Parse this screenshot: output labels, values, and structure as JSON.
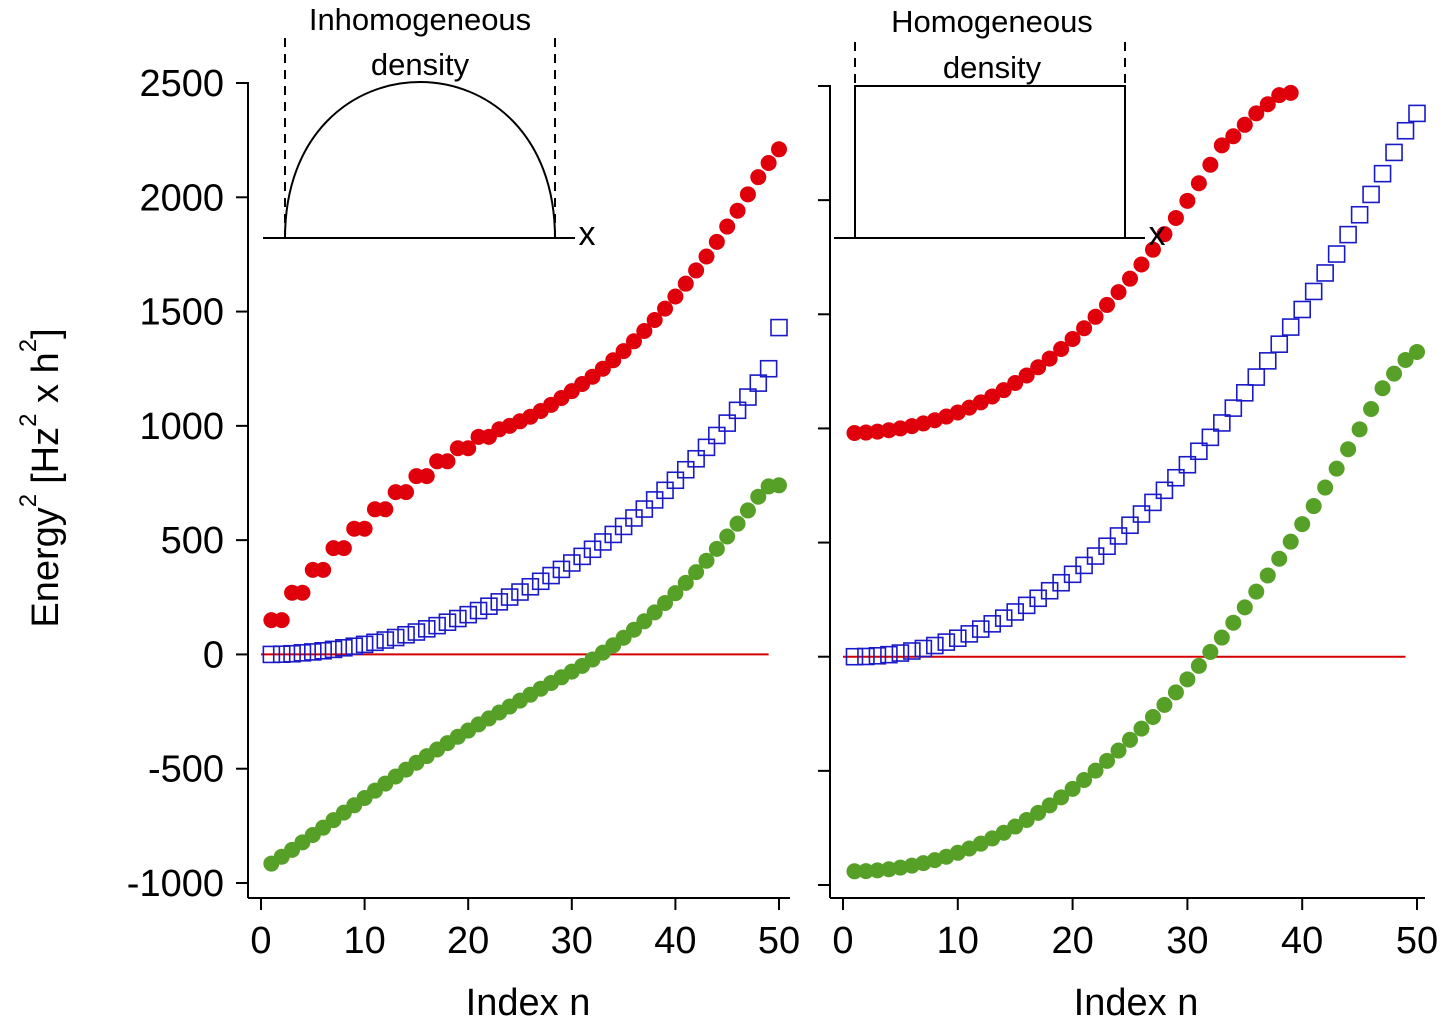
{
  "chart_data": [
    {
      "type": "scatter",
      "panel": "left",
      "xlabel": "Index n",
      "ylabel": "Energy",
      "ylabel_sup": "2",
      "ylabel_unit_parts": [
        "[Hz",
        "2",
        " x h",
        "2",
        "]"
      ],
      "xlim": [
        -1,
        50.5
      ],
      "ylim": [
        -1050,
        2550
      ],
      "xticks": [
        0,
        10,
        20,
        30,
        40,
        50
      ],
      "xtick_labels": [
        "0",
        "10",
        "20",
        "30",
        "40",
        "50"
      ],
      "yticks": [
        -1000,
        -500,
        0,
        500,
        1000,
        1500,
        2000,
        2500
      ],
      "ytick_labels": [
        "-1000",
        "-500",
        "0",
        "500",
        "1000",
        "1500",
        "2000",
        "2500"
      ],
      "zero_line": {
        "x": [
          0,
          49
        ],
        "y": 0,
        "color": "#d40000"
      },
      "inset": {
        "title_line1": "Inhomogeneous",
        "title_line2": "density",
        "axis_label": "x",
        "profile": "semicircle"
      },
      "series": [
        {
          "name": "upper",
          "marker": "filled-circle",
          "color": "#e0000b",
          "x": [
            1,
            2,
            3,
            4,
            5,
            6,
            7,
            8,
            9,
            10,
            11,
            12,
            13,
            14,
            15,
            16,
            17,
            18,
            19,
            20,
            21,
            22,
            23,
            24,
            25,
            26,
            27,
            28,
            29,
            30,
            31,
            32,
            33,
            34,
            35,
            36,
            37,
            38,
            39,
            40,
            41,
            42,
            43,
            44,
            45,
            46,
            47,
            48,
            49,
            50
          ],
          "y": [
            150,
            150,
            270,
            270,
            370,
            370,
            465,
            465,
            550,
            550,
            635,
            635,
            710,
            710,
            780,
            780,
            845,
            845,
            902,
            902,
            952,
            952,
            985,
            1000,
            1020,
            1040,
            1065,
            1092,
            1122,
            1152,
            1183,
            1215,
            1250,
            1287,
            1327,
            1370,
            1415,
            1463,
            1513,
            1566,
            1622,
            1680,
            1741,
            1805,
            1872,
            1941,
            2013,
            2088,
            2150,
            2210
          ]
        },
        {
          "name": "middle",
          "marker": "open-square",
          "color": "#1a1ac8",
          "x": [
            1,
            2,
            3,
            4,
            5,
            6,
            7,
            8,
            9,
            10,
            11,
            12,
            13,
            14,
            15,
            16,
            17,
            18,
            19,
            20,
            21,
            22,
            23,
            24,
            25,
            26,
            27,
            28,
            29,
            30,
            31,
            32,
            33,
            34,
            35,
            36,
            37,
            38,
            39,
            40,
            41,
            42,
            43,
            44,
            45,
            46,
            47,
            48,
            49,
            50
          ],
          "y": [
            0,
            1,
            3,
            7,
            11,
            16,
            22,
            29,
            36,
            44,
            53,
            63,
            74,
            86,
            98,
            112,
            126,
            141,
            157,
            174,
            192,
            211,
            230,
            251,
            273,
            296,
            320,
            345,
            372,
            400,
            429,
            460,
            492,
            525,
            560,
            597,
            636,
            676,
            718,
            762,
            808,
            856,
            906,
            958,
            1012,
            1068,
            1126,
            1187,
            1250,
            1430
          ]
        },
        {
          "name": "lower",
          "marker": "filled-circle",
          "color": "#56a028",
          "x": [
            1,
            2,
            3,
            4,
            5,
            6,
            7,
            8,
            9,
            10,
            11,
            12,
            13,
            14,
            15,
            16,
            17,
            18,
            19,
            20,
            21,
            22,
            23,
            24,
            25,
            26,
            27,
            28,
            29,
            30,
            31,
            32,
            33,
            34,
            35,
            36,
            37,
            38,
            39,
            40,
            41,
            42,
            43,
            44,
            45,
            46,
            47,
            48,
            49,
            50
          ],
          "y": [
            -915,
            -885,
            -855,
            -822,
            -790,
            -758,
            -725,
            -692,
            -660,
            -628,
            -596,
            -565,
            -534,
            -504,
            -474,
            -445,
            -416,
            -388,
            -360,
            -333,
            -306,
            -280,
            -254,
            -228,
            -202,
            -176,
            -150,
            -125,
            -100,
            -75,
            -50,
            -22,
            8,
            40,
            73,
            108,
            145,
            184,
            225,
            268,
            313,
            360,
            410,
            462,
            516,
            572,
            630,
            690,
            735,
            740
          ]
        }
      ]
    },
    {
      "type": "scatter",
      "panel": "right",
      "xlabel": "Index n",
      "xlim": [
        -1,
        50.5
      ],
      "ylim": [
        -1050,
        2550
      ],
      "xticks": [
        0,
        10,
        20,
        30,
        40,
        50
      ],
      "xtick_labels": [
        "0",
        "10",
        "20",
        "30",
        "40",
        "50"
      ],
      "yticks": [
        -1000,
        -500,
        0,
        500,
        1000,
        1500,
        2000,
        2500
      ],
      "zero_line": {
        "x": [
          0,
          49
        ],
        "y": 0,
        "color": "#d40000"
      },
      "inset": {
        "title_line1": "Homogeneous",
        "title_line2": "density",
        "axis_label": "x",
        "profile": "box"
      },
      "series": [
        {
          "name": "upper",
          "marker": "filled-circle",
          "color": "#e0000b",
          "x": [
            1,
            2,
            3,
            4,
            5,
            6,
            7,
            8,
            9,
            10,
            11,
            12,
            13,
            14,
            15,
            16,
            17,
            18,
            19,
            20,
            21,
            22,
            23,
            24,
            25,
            26,
            27,
            28,
            29,
            30,
            31,
            32,
            33,
            34,
            35,
            36,
            37,
            38,
            39
          ],
          "y": [
            980,
            982,
            986,
            992,
            1000,
            1010,
            1022,
            1036,
            1052,
            1070,
            1091,
            1114,
            1140,
            1168,
            1199,
            1232,
            1268,
            1306,
            1348,
            1392,
            1439,
            1489,
            1541,
            1597,
            1656,
            1718,
            1783,
            1851,
            1922,
            1997,
            2074,
            2155,
            2240,
            2280,
            2330,
            2380,
            2420,
            2460,
            2470
          ]
        },
        {
          "name": "middle",
          "marker": "open-square",
          "color": "#1a1ac8",
          "x": [
            1,
            2,
            3,
            4,
            5,
            6,
            7,
            8,
            9,
            10,
            11,
            12,
            13,
            14,
            15,
            16,
            17,
            18,
            19,
            20,
            21,
            22,
            23,
            24,
            25,
            26,
            27,
            28,
            29,
            30,
            31,
            32,
            33,
            34,
            35,
            36,
            37,
            38,
            39,
            40,
            41,
            42,
            43,
            44,
            45,
            46,
            47,
            48,
            49,
            50
          ],
          "y": [
            0,
            1,
            4,
            9,
            16,
            25,
            36,
            49,
            64,
            81,
            100,
            121,
            144,
            169,
            196,
            225,
            256,
            289,
            324,
            361,
            400,
            441,
            484,
            529,
            576,
            625,
            676,
            729,
            784,
            841,
            900,
            961,
            1024,
            1089,
            1156,
            1225,
            1296,
            1369,
            1444,
            1521,
            1600,
            1681,
            1764,
            1849,
            1936,
            2025,
            2116,
            2209,
            2304,
            2380
          ]
        },
        {
          "name": "lower",
          "marker": "filled-circle",
          "color": "#56a028",
          "x": [
            1,
            2,
            3,
            4,
            5,
            6,
            7,
            8,
            9,
            10,
            11,
            12,
            13,
            14,
            15,
            16,
            17,
            18,
            19,
            20,
            21,
            22,
            23,
            24,
            25,
            26,
            27,
            28,
            29,
            30,
            31,
            32,
            33,
            34,
            35,
            36,
            37,
            38,
            39,
            40,
            41,
            42,
            43,
            44,
            45,
            46,
            47,
            48,
            49,
            50
          ],
          "y": [
            -940,
            -939,
            -936,
            -931,
            -924,
            -915,
            -904,
            -891,
            -876,
            -859,
            -840,
            -819,
            -796,
            -771,
            -744,
            -715,
            -684,
            -651,
            -616,
            -579,
            -540,
            -499,
            -456,
            -411,
            -364,
            -315,
            -264,
            -211,
            -156,
            -99,
            -40,
            21,
            84,
            149,
            216,
            285,
            356,
            429,
            504,
            581,
            660,
            741,
            824,
            909,
            996,
            1085,
            1176,
            1240,
            1300,
            1335
          ]
        }
      ]
    }
  ]
}
